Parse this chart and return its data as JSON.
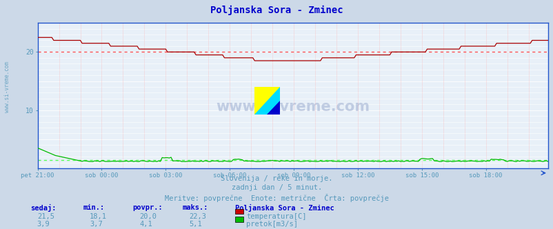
{
  "title": "Poljanska Sora - Zminec",
  "bg_color": "#ccd9e8",
  "plot_bg_color": "#e8f0f8",
  "grid_color_white": "#ffffff",
  "grid_color_pink": "#ffaaaa",
  "title_color": "#0000cc",
  "axis_label_color": "#5599bb",
  "text_color": "#5599bb",
  "xlim": [
    0,
    287
  ],
  "ylim": [
    0,
    25
  ],
  "yticks": [
    10,
    20
  ],
  "xtick_labels": [
    "pet 21:00",
    "sob 00:00",
    "sob 03:00",
    "sob 06:00",
    "sob 09:00",
    "sob 12:00",
    "sob 15:00",
    "sob 18:00"
  ],
  "xtick_positions": [
    0,
    36,
    72,
    108,
    144,
    180,
    216,
    252
  ],
  "subtitle_lines": [
    "Slovenija / reke in morje.",
    "zadnji dan / 5 minut.",
    "Meritve: povprečne  Enote: metrične  Črta: povprečje"
  ],
  "legend_title": "Poljanska Sora - Zminec",
  "legend_items": [
    {
      "label": "temperatura[C]",
      "color": "#cc0000"
    },
    {
      "label": "pretok[m3/s]",
      "color": "#00bb00"
    }
  ],
  "stats_headers": [
    "sedaj:",
    "min.:",
    "povpr.:",
    "maks.:"
  ],
  "stats_rows": [
    [
      "21,5",
      "18,1",
      "20,0",
      "22,3"
    ],
    [
      "3,9",
      "3,7",
      "4,1",
      "5,1"
    ]
  ],
  "watermark": "www.si-vreme.com",
  "temp_avg": 20.0,
  "flow_avg_scaled": 1.4,
  "temp_color": "#aa0000",
  "flow_color": "#00bb00",
  "avg_line_color_temp": "#ff5555",
  "avg_line_color_flow": "#55ff55",
  "border_color": "#3366aa",
  "spine_color": "#2255cc",
  "sidebar_text": "www.si-vreme.com"
}
